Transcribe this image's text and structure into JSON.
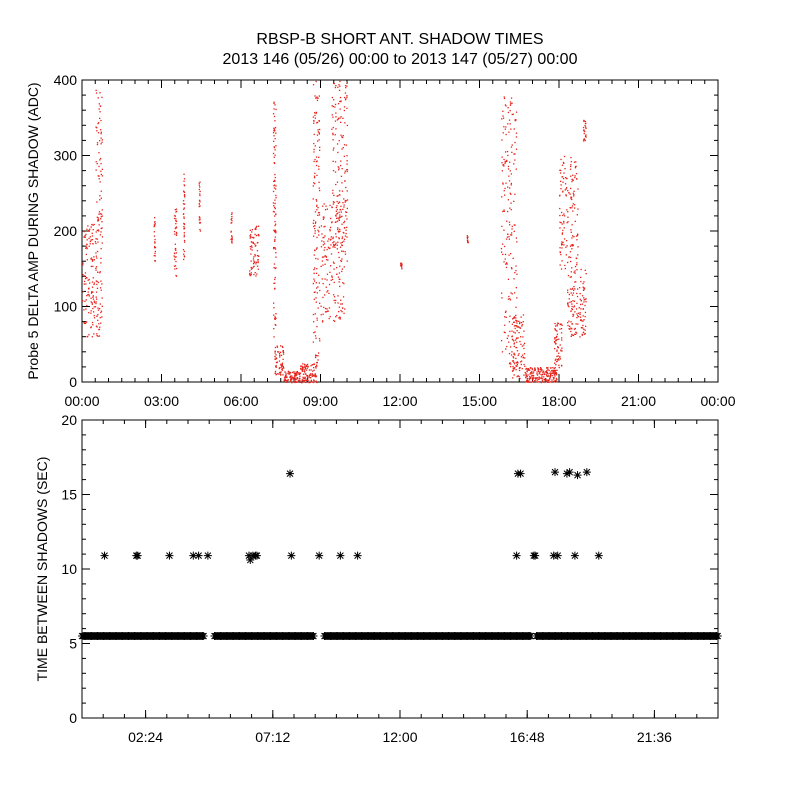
{
  "title_line1": "RBSP-B SHORT ANT. SHADOW TIMES",
  "title_line2": "2013 146 (05/26) 00:00 to 2013 147 (05/27) 00:00",
  "colors": {
    "top_points": "#e8221a",
    "bottom_points": "#000000",
    "axes": "#000000"
  },
  "chart_data": [
    {
      "type": "scatter",
      "ylabel": "Probe 5 DELTA AMP DURING SHADOW (ADC)",
      "xlim": [
        "00:00",
        "24:00"
      ],
      "ylim": [
        0,
        400
      ],
      "x_ticks": [
        "00:00",
        "03:00",
        "06:00",
        "09:00",
        "12:00",
        "15:00",
        "18:00",
        "21:00",
        "00:00"
      ],
      "y_ticks": [
        0,
        100,
        200,
        300,
        400
      ],
      "series": [
        {
          "color": "#e8221a",
          "marker": "dot",
          "clusters": [
            {
              "hour_range": [
                0.0,
                0.55
              ],
              "y_range": [
                60,
                210
              ]
            },
            {
              "hour_range": [
                0.5,
                0.75
              ],
              "y_range": [
                60,
                390
              ]
            },
            {
              "hour_range": [
                2.7,
                2.75
              ],
              "y_range": [
                160,
                220
              ]
            },
            {
              "hour_range": [
                3.45,
                3.55
              ],
              "y_range": [
                140,
                230
              ]
            },
            {
              "hour_range": [
                3.8,
                3.85
              ],
              "y_range": [
                160,
                280
              ]
            },
            {
              "hour_range": [
                4.4,
                4.45
              ],
              "y_range": [
                200,
                270
              ]
            },
            {
              "hour_range": [
                5.6,
                5.65
              ],
              "y_range": [
                185,
                230
              ]
            },
            {
              "hour_range": [
                6.3,
                6.65
              ],
              "y_range": [
                140,
                210
              ]
            },
            {
              "hour_range": [
                7.2,
                7.3
              ],
              "y_range": [
                60,
                380
              ]
            },
            {
              "hour_range": [
                7.25,
                7.6
              ],
              "y_range": [
                10,
                50
              ]
            },
            {
              "hour_range": [
                7.6,
                8.2
              ],
              "y_range": [
                0,
                15
              ]
            },
            {
              "hour_range": [
                8.2,
                8.85
              ],
              "y_range": [
                0,
                25
              ]
            },
            {
              "hour_range": [
                8.7,
                8.95
              ],
              "y_range": [
                20,
                400
              ]
            },
            {
              "hour_range": [
                9.0,
                9.9
              ],
              "y_range": [
                80,
                240
              ]
            },
            {
              "hour_range": [
                9.4,
                10.0
              ],
              "y_range": [
                160,
                400
              ]
            },
            {
              "hour_range": [
                12.0,
                12.05
              ],
              "y_range": [
                150,
                160
              ]
            },
            {
              "hour_range": [
                14.5,
                14.55
              ],
              "y_range": [
                185,
                195
              ]
            },
            {
              "hour_range": [
                15.8,
                16.4
              ],
              "y_range": [
                20,
                380
              ]
            },
            {
              "hour_range": [
                16.2,
                16.7
              ],
              "y_range": [
                5,
                90
              ]
            },
            {
              "hour_range": [
                16.7,
                17.1
              ],
              "y_range": [
                0,
                20
              ]
            },
            {
              "hour_range": [
                17.1,
                17.9
              ],
              "y_range": [
                0,
                20
              ]
            },
            {
              "hour_range": [
                17.8,
                18.1
              ],
              "y_range": [
                20,
                80
              ]
            },
            {
              "hour_range": [
                18.0,
                18.7
              ],
              "y_range": [
                150,
                300
              ]
            },
            {
              "hour_range": [
                18.3,
                19.0
              ],
              "y_range": [
                60,
                150
              ]
            },
            {
              "hour_range": [
                18.9,
                19.0
              ],
              "y_range": [
                320,
                350
              ]
            }
          ]
        }
      ]
    },
    {
      "type": "scatter",
      "ylabel": "TIME BETWEEN SHADOWS (SEC)",
      "xlim": [
        "00:00",
        "24:00"
      ],
      "ylim": [
        0,
        20
      ],
      "x_ticks": [
        "02:24",
        "07:12",
        "12:00",
        "16:48",
        "21:36"
      ],
      "y_ticks": [
        0,
        5,
        10,
        15,
        20
      ],
      "series": [
        {
          "color": "#000000",
          "marker": "asterisk",
          "baseline": {
            "y": 5.5,
            "hour_segments": [
              [
                0.0,
                4.6
              ],
              [
                5.0,
                8.75
              ],
              [
                9.15,
                16.95
              ],
              [
                17.15,
                24.0
              ]
            ]
          },
          "points": [
            {
              "x": 0.85,
              "y": 10.9
            },
            {
              "x": 2.05,
              "y": 10.9
            },
            {
              "x": 2.1,
              "y": 10.9
            },
            {
              "x": 3.3,
              "y": 10.9
            },
            {
              "x": 4.2,
              "y": 10.9
            },
            {
              "x": 4.4,
              "y": 10.9
            },
            {
              "x": 4.75,
              "y": 10.9
            },
            {
              "x": 6.3,
              "y": 10.9
            },
            {
              "x": 6.35,
              "y": 10.6
            },
            {
              "x": 6.45,
              "y": 10.9
            },
            {
              "x": 6.55,
              "y": 10.9
            },
            {
              "x": 6.6,
              "y": 10.9
            },
            {
              "x": 7.85,
              "y": 16.4
            },
            {
              "x": 7.9,
              "y": 10.9
            },
            {
              "x": 8.95,
              "y": 10.9
            },
            {
              "x": 9.75,
              "y": 10.9
            },
            {
              "x": 10.4,
              "y": 10.9
            },
            {
              "x": 16.4,
              "y": 10.9
            },
            {
              "x": 16.45,
              "y": 16.4
            },
            {
              "x": 16.55,
              "y": 16.4
            },
            {
              "x": 17.05,
              "y": 10.9
            },
            {
              "x": 17.1,
              "y": 10.9
            },
            {
              "x": 17.8,
              "y": 10.9
            },
            {
              "x": 17.85,
              "y": 16.5
            },
            {
              "x": 17.95,
              "y": 10.9
            },
            {
              "x": 18.3,
              "y": 16.4
            },
            {
              "x": 18.4,
              "y": 16.5
            },
            {
              "x": 18.6,
              "y": 10.9
            },
            {
              "x": 18.7,
              "y": 16.3
            },
            {
              "x": 19.05,
              "y": 16.5
            },
            {
              "x": 19.5,
              "y": 10.9
            }
          ]
        }
      ]
    }
  ]
}
